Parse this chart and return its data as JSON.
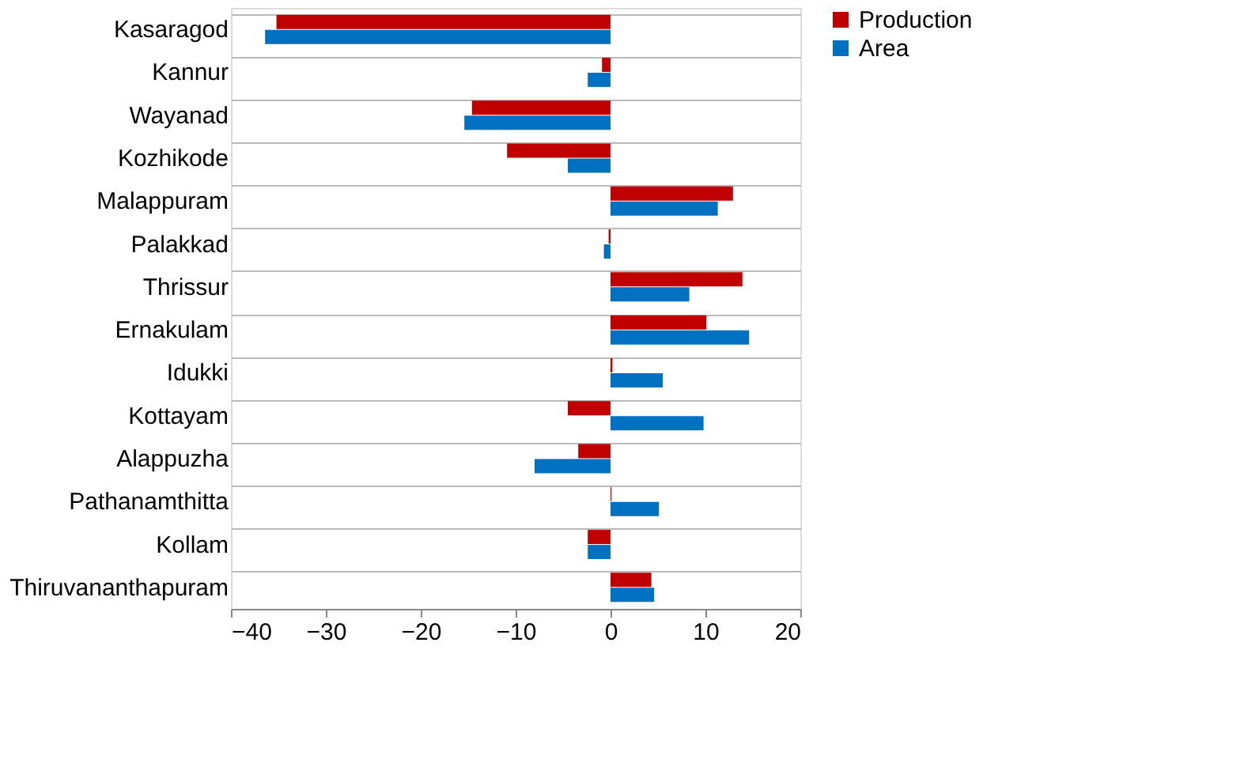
{
  "chart_data": {
    "type": "bar",
    "orientation": "horizontal",
    "categories": [
      "Kasaragod",
      "Kannur",
      "Wayanad",
      "Kozhikode",
      "Malappuram",
      "Palakkad",
      "Thrissur",
      "Ernakulam",
      "Idukki",
      "Kottayam",
      "Alappuzha",
      "Pathanamthitta",
      "Kollam",
      "Thiruvananthapuram"
    ],
    "series": [
      {
        "name": "Production",
        "color": "#c00000",
        "values": [
          -35.2,
          -0.9,
          -14.6,
          -10.9,
          12.9,
          -0.2,
          13.9,
          10.1,
          0.2,
          -4.5,
          -3.4,
          0.1,
          -2.4,
          4.3
        ]
      },
      {
        "name": "Area",
        "color": "#0070c0",
        "values": [
          -36.4,
          -2.4,
          -15.4,
          -4.5,
          11.3,
          -0.7,
          8.3,
          14.6,
          5.5,
          9.8,
          -8.0,
          5.1,
          -2.4,
          4.6
        ]
      }
    ],
    "xlim": [
      -40,
      20
    ],
    "xticks": [
      -40,
      -30,
      -20,
      -10,
      0,
      10,
      20
    ],
    "grid": "y",
    "legend": "right"
  }
}
